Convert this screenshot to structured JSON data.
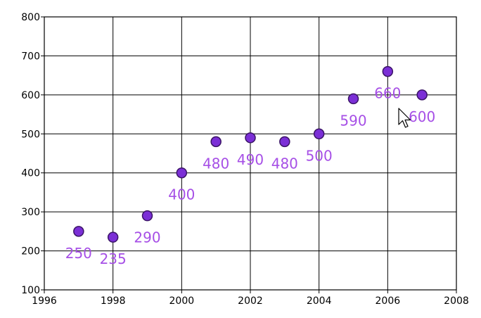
{
  "chart_data": {
    "type": "scatter",
    "title": "",
    "xlabel": "",
    "ylabel": "",
    "xlim": [
      1996,
      2008
    ],
    "ylim": [
      100,
      800
    ],
    "x_ticks": [
      1996,
      1998,
      2000,
      2002,
      2004,
      2006,
      2008
    ],
    "y_ticks": [
      100,
      200,
      300,
      400,
      500,
      600,
      700,
      800
    ],
    "grid": true,
    "legend": "none",
    "marker_color": "#7b2fd6",
    "marker_edge_color": "#3a1466",
    "label_color": "#a64fe6",
    "points": [
      {
        "x": 1997,
        "y": 250,
        "label": "250"
      },
      {
        "x": 1998,
        "y": 235,
        "label": "235"
      },
      {
        "x": 1999,
        "y": 290,
        "label": "290"
      },
      {
        "x": 2000,
        "y": 400,
        "label": "400"
      },
      {
        "x": 2001,
        "y": 480,
        "label": "480"
      },
      {
        "x": 2002,
        "y": 490,
        "label": "490"
      },
      {
        "x": 2003,
        "y": 480,
        "label": "480"
      },
      {
        "x": 2004,
        "y": 500,
        "label": "500"
      },
      {
        "x": 2005,
        "y": 590,
        "label": "590"
      },
      {
        "x": 2006,
        "y": 660,
        "label": "660"
      },
      {
        "x": 2007,
        "y": 600,
        "label": "600"
      }
    ]
  },
  "cursor_icon": "mouse-pointer-icon"
}
